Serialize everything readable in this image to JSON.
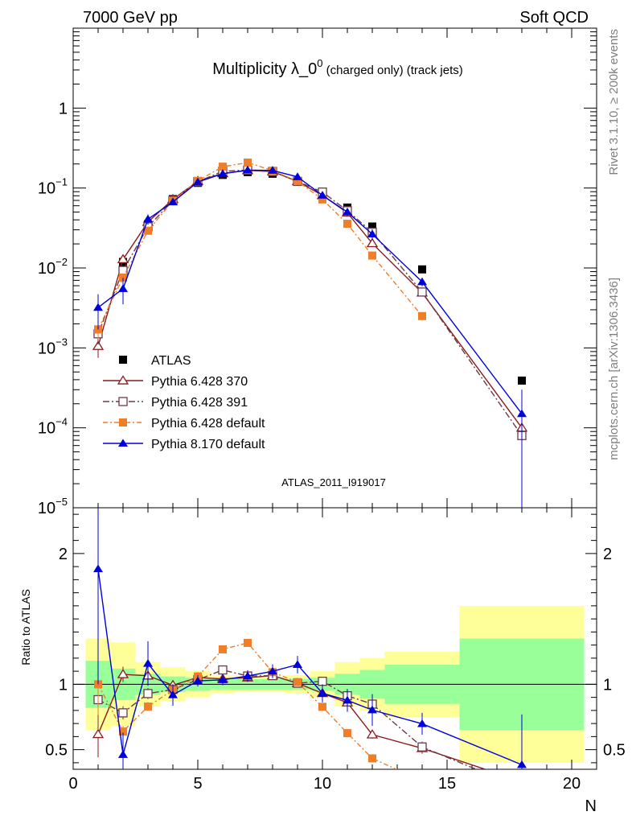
{
  "header": {
    "left": "7000 GeV pp",
    "right": "Soft QCD"
  },
  "side_labels": {
    "rivet": "Rivet 3.1.10, ≥ 200k events",
    "mcplots": "mcplots.cern.ch [arXiv:1306.3436]"
  },
  "chart_data": {
    "type": "scatter",
    "title_main": "Multiplicity λ_0",
    "title_sup": "0",
    "title_suffix": " (charged only) (track jets)",
    "watermark": "ATLAS_2011_I919017",
    "xlabel": "N",
    "ylabel_ratio": "Ratio to ATLAS",
    "xlim": [
      0,
      21
    ],
    "ylim_main": [
      1e-05,
      10
    ],
    "yscale_main": "log",
    "ylim_ratio": [
      0.35,
      2.35
    ],
    "x_ticks": [
      "0",
      "5",
      "10",
      "15",
      "20"
    ],
    "y_ticks_main": [
      {
        "base": "1",
        "exp": ""
      },
      {
        "base": "10",
        "exp": "−1"
      },
      {
        "base": "10",
        "exp": "−2"
      },
      {
        "base": "10",
        "exp": "−3"
      },
      {
        "base": "10",
        "exp": "−4"
      },
      {
        "base": "10",
        "exp": "−5"
      }
    ],
    "y_ticks_ratio": [
      "0.5",
      "1",
      "2"
    ],
    "legend_position": "lower-left",
    "data": {
      "name": "ATLAS",
      "x": [
        1,
        2,
        3,
        4,
        5,
        6,
        7,
        8,
        9,
        10,
        11,
        12,
        14,
        18
      ],
      "y": [
        0.0017,
        0.0119,
        0.0352,
        0.0727,
        0.116,
        0.146,
        0.158,
        0.151,
        0.12,
        0.087,
        0.057,
        0.033,
        0.0096,
        0.00039
      ],
      "band_edges": [
        0.5,
        1.5,
        2.5,
        3.5,
        4.5,
        5.5,
        6.5,
        7.5,
        8.5,
        9.5,
        10.5,
        11.5,
        12.5,
        15.5,
        20.5
      ],
      "stat_rel": [
        0.18,
        0.12,
        0.08,
        0.06,
        0.05,
        0.04,
        0.04,
        0.04,
        0.04,
        0.05,
        0.08,
        0.11,
        0.15,
        0.35
      ],
      "total_rel": [
        0.35,
        0.32,
        0.17,
        0.13,
        0.1,
        0.07,
        0.06,
        0.06,
        0.07,
        0.1,
        0.17,
        0.2,
        0.25,
        0.6
      ]
    },
    "series": [
      {
        "name": "Pythia 6.428 370",
        "color": "#8b1a1a",
        "marker": "triangle-open",
        "dash": "",
        "x": [
          1,
          2,
          3,
          4,
          5,
          6,
          7,
          8,
          9,
          10,
          11,
          12,
          14,
          18
        ],
        "y": [
          0.00105,
          0.0128,
          0.0375,
          0.0722,
          0.122,
          0.152,
          0.166,
          0.161,
          0.121,
          0.081,
          0.049,
          0.0203,
          0.0049,
          0.0001
        ],
        "err": [
          0.0003,
          0.0007,
          0.0015,
          0.002,
          0.003,
          0.003,
          0.003,
          0.003,
          0.003,
          0.002,
          0.0015,
          0.001,
          0.0004,
          3e-05
        ]
      },
      {
        "name": "Pythia 6.428 391",
        "color": "#6b3a4a",
        "marker": "square-open",
        "dash": "8,3,2,3",
        "x": [
          1,
          2,
          3,
          4,
          5,
          6,
          7,
          8,
          9,
          10,
          11,
          12,
          14,
          18
        ],
        "y": [
          0.0015,
          0.0093,
          0.0327,
          0.0698,
          0.12,
          0.162,
          0.168,
          0.161,
          0.121,
          0.089,
          0.052,
          0.028,
          0.005,
          8e-05
        ],
        "err": [
          0.0004,
          0.0006,
          0.0015,
          0.002,
          0.003,
          0.003,
          0.003,
          0.003,
          0.003,
          0.002,
          0.0015,
          0.001,
          0.0004,
          4e-05
        ]
      },
      {
        "name": "Pythia 6.428 default",
        "color": "#f07d28",
        "marker": "square-filled",
        "dash": "6,3,2,3",
        "x": [
          1,
          2,
          3,
          4,
          5,
          6,
          7,
          8,
          9,
          10,
          11,
          12,
          14,
          18
        ],
        "y": [
          0.0017,
          0.0076,
          0.0292,
          0.0695,
          0.123,
          0.185,
          0.208,
          0.165,
          0.122,
          0.072,
          0.0357,
          0.0143,
          0.0025,
          null
        ],
        "err": [
          0.0004,
          0.0005,
          0.0012,
          0.002,
          0.003,
          0.003,
          0.003,
          0.003,
          0.003,
          0.002,
          0.0012,
          0.0008,
          0.0003,
          null
        ]
      },
      {
        "name": "Pythia 8.170 default",
        "color": "#0000dd",
        "marker": "triangle-filled",
        "dash": "",
        "x": [
          1,
          2,
          3,
          4,
          5,
          6,
          7,
          8,
          9,
          10,
          11,
          12,
          14,
          18
        ],
        "y": [
          0.0032,
          0.0055,
          0.0408,
          0.0668,
          0.119,
          0.151,
          0.168,
          0.166,
          0.138,
          0.081,
          0.05,
          0.0265,
          0.0067,
          0.00015
        ],
        "err": [
          0.0015,
          0.002,
          0.006,
          0.006,
          0.005,
          0.006,
          0.007,
          0.008,
          0.008,
          0.006,
          0.005,
          0.004,
          0.0008,
          0.00015
        ]
      }
    ]
  }
}
